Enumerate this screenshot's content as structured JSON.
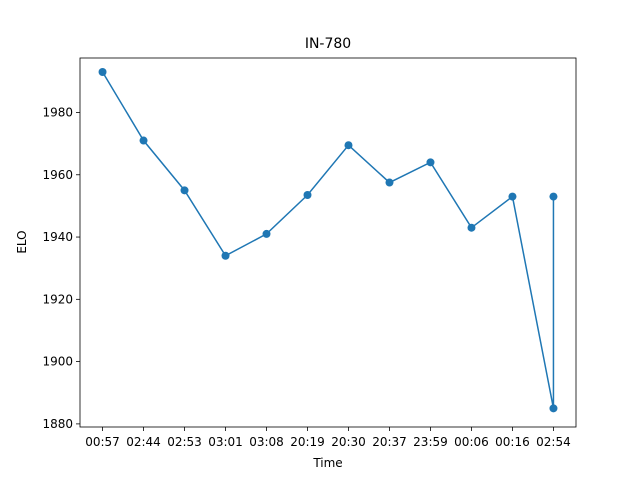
{
  "chart_data": {
    "type": "line",
    "title": "IN-780",
    "xlabel": "Time",
    "ylabel": "ELO",
    "categories": [
      "00:57",
      "02:44",
      "02:53",
      "03:01",
      "03:08",
      "20:19",
      "20:30",
      "20:37",
      "23:59",
      "00:06",
      "00:16",
      "02:54"
    ],
    "series": [
      {
        "x": [
          0,
          1,
          2,
          3,
          4,
          5,
          6,
          7,
          8,
          9,
          10,
          11,
          11
        ],
        "values": [
          1993,
          1971,
          1955,
          1934,
          1941,
          1953.5,
          1969.5,
          1957.5,
          1964,
          1943,
          1953,
          1885,
          1953
        ]
      }
    ],
    "y_ticks": [
      1880,
      1900,
      1920,
      1940,
      1960,
      1980
    ],
    "ylim": [
      1879,
      1997.5
    ],
    "grid": false,
    "line_color": "#1f77b4",
    "marker": "circle"
  }
}
